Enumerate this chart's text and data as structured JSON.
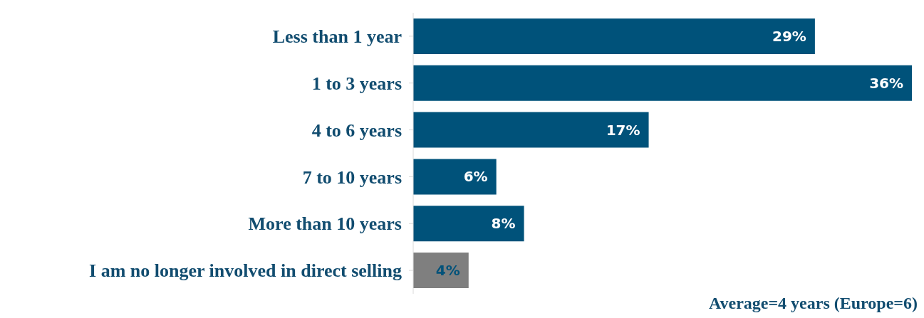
{
  "chart_data": {
    "type": "bar",
    "orientation": "horizontal",
    "categories": [
      "Less than 1 year",
      "1 to 3 years",
      "4 to 6 years",
      "7 to 10 years",
      "More than 10 years",
      "I am no longer involved in direct selling"
    ],
    "values": [
      29,
      36,
      17,
      6,
      8,
      4
    ],
    "colors": [
      "#00527a",
      "#00527a",
      "#00527a",
      "#00527a",
      "#00527a",
      "#7f7f7f"
    ],
    "value_labels": [
      "29%",
      "36%",
      "17%",
      "6%",
      "8%",
      "4%"
    ],
    "annotations": [
      "Average=4 years (Europe=6)"
    ]
  }
}
